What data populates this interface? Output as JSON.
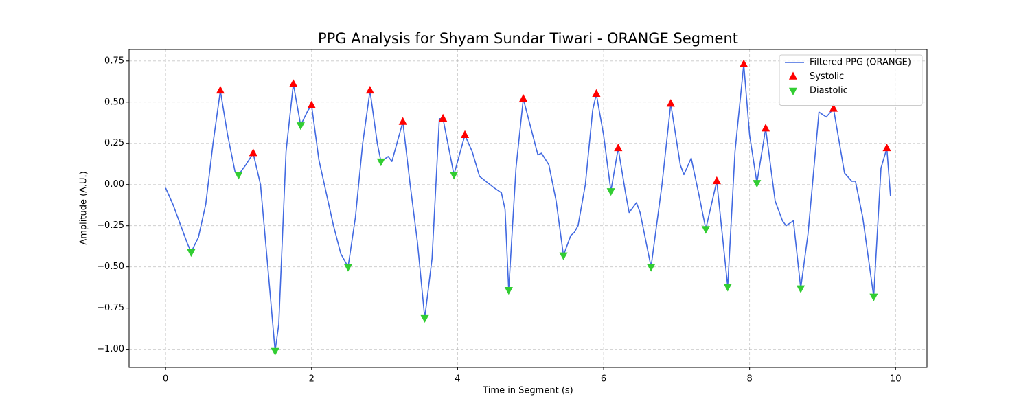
{
  "chart_data": {
    "type": "line",
    "title": "PPG Analysis for Shyam Sundar Tiwari - ORANGE Segment",
    "x_label": "Time in Segment (s)",
    "y_label": "Amplitude (A.U.)",
    "xlim": [
      -0.5,
      10.43
    ],
    "ylim": [
      -1.11,
      0.82
    ],
    "xticks": [
      0,
      2,
      4,
      6,
      8,
      10
    ],
    "yticks": [
      0.75,
      {
        "value": 0.5,
        "label": "0.50"
      },
      0.25,
      {
        "value": 0,
        "label": "0.00"
      },
      {
        "value": -0.25,
        "label": "−0.25"
      },
      {
        "value": -0.5,
        "label": "−0.50"
      },
      {
        "value": -0.75,
        "label": "−0.75"
      },
      {
        "value": -1,
        "label": "−1.00"
      }
    ],
    "grid": true,
    "legend": "upper right",
    "series": [
      {
        "name": "Filtered PPG (ORANGE)",
        "kind": "line",
        "color": "#4169e1",
        "x": [
          0,
          0.1,
          0.2,
          0.3,
          0.35,
          0.45,
          0.55,
          0.65,
          0.75,
          0.85,
          0.95,
          1.0,
          1.1,
          1.2,
          1.3,
          1.4,
          1.5,
          1.55,
          1.65,
          1.75,
          1.85,
          1.95,
          2.0,
          2.1,
          2.2,
          2.3,
          2.4,
          2.5,
          2.6,
          2.7,
          2.8,
          2.9,
          2.95,
          3.05,
          3.1,
          3.25,
          3.35,
          3.45,
          3.55,
          3.65,
          3.75,
          3.8,
          3.95,
          4.1,
          4.2,
          4.3,
          4.5,
          4.6,
          4.65,
          4.7,
          4.8,
          4.9,
          5.0,
          5.1,
          5.15,
          5.25,
          5.35,
          5.45,
          5.55,
          5.6,
          5.65,
          5.75,
          5.85,
          5.9,
          6.0,
          6.1,
          6.2,
          6.3,
          6.35,
          6.45,
          6.5,
          6.65,
          6.8,
          6.92,
          7.05,
          7.1,
          7.2,
          7.3,
          7.4,
          7.55,
          7.7,
          7.8,
          7.92,
          8.0,
          8.1,
          8.22,
          8.35,
          8.45,
          8.5,
          8.6,
          8.7,
          8.8,
          8.95,
          9.05,
          9.15,
          9.3,
          9.4,
          9.45,
          9.55,
          9.7,
          9.8,
          9.88,
          9.93
        ],
        "values": [
          -0.02,
          -0.12,
          -0.24,
          -0.36,
          -0.41,
          -0.32,
          -0.12,
          0.25,
          0.57,
          0.3,
          0.08,
          0.06,
          0.12,
          0.19,
          0.0,
          -0.5,
          -1.01,
          -0.85,
          0.2,
          0.61,
          0.36,
          0.45,
          0.48,
          0.15,
          -0.05,
          -0.25,
          -0.42,
          -0.5,
          -0.2,
          0.25,
          0.57,
          0.25,
          0.14,
          0.17,
          0.14,
          0.38,
          0.0,
          -0.35,
          -0.81,
          -0.45,
          0.4,
          0.4,
          0.06,
          0.3,
          0.2,
          0.05,
          -0.02,
          -0.05,
          -0.15,
          -0.64,
          0.1,
          0.52,
          0.35,
          0.18,
          0.19,
          0.12,
          -0.1,
          -0.43,
          -0.31,
          -0.29,
          -0.25,
          0.0,
          0.45,
          0.55,
          0.3,
          -0.04,
          0.22,
          -0.05,
          -0.17,
          -0.11,
          -0.17,
          -0.5,
          0.0,
          0.49,
          0.12,
          0.06,
          0.16,
          -0.05,
          -0.27,
          0.02,
          -0.62,
          0.2,
          0.73,
          0.3,
          0.01,
          0.34,
          -0.1,
          -0.22,
          -0.25,
          -0.22,
          -0.63,
          -0.3,
          0.44,
          0.41,
          0.46,
          0.07,
          0.02,
          0.02,
          -0.2,
          -0.68,
          0.1,
          0.22,
          -0.07
        ]
      },
      {
        "name": "Systolic",
        "kind": "triangle-up",
        "color": "#ff0000",
        "x": [
          0.75,
          1.2,
          1.75,
          2.0,
          2.8,
          3.25,
          3.8,
          4.1,
          4.9,
          5.9,
          6.2,
          6.92,
          7.55,
          7.92,
          8.22,
          9.15,
          9.88
        ],
        "values": [
          0.57,
          0.19,
          0.61,
          0.48,
          0.57,
          0.38,
          0.4,
          0.3,
          0.52,
          0.55,
          0.22,
          0.49,
          0.02,
          0.73,
          0.34,
          0.46,
          0.22
        ]
      },
      {
        "name": "Diastolic",
        "kind": "triangle-down",
        "color": "#32cd32",
        "x": [
          0.35,
          1.0,
          1.5,
          1.85,
          2.5,
          2.95,
          3.55,
          3.95,
          4.7,
          5.45,
          6.1,
          6.65,
          7.4,
          7.7,
          8.1,
          8.7,
          9.7
        ],
        "values": [
          -0.41,
          0.06,
          -1.01,
          0.36,
          -0.5,
          0.14,
          -0.81,
          0.06,
          -0.64,
          -0.43,
          -0.04,
          -0.5,
          -0.27,
          -0.62,
          0.01,
          -0.63,
          -0.68
        ]
      }
    ]
  }
}
